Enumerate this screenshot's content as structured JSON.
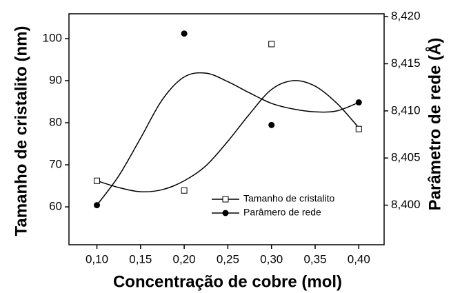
{
  "chart_data": {
    "type": "scatter",
    "xlabel": "Concentração de cobre (mol)",
    "ylabel": "Tamanho de cristalito (nm)",
    "y2label": "Parâmetro de rede (Å)",
    "x": [
      0.1,
      0.2,
      0.3,
      0.4
    ],
    "xlim": [
      0.068,
      0.429
    ],
    "xticks": [
      {
        "value": 0.1,
        "label": "0,10"
      },
      {
        "value": 0.15,
        "label": "0,15"
      },
      {
        "value": 0.2,
        "label": "0,20"
      },
      {
        "value": 0.25,
        "label": "0,25"
      },
      {
        "value": 0.3,
        "label": "0,30"
      },
      {
        "value": 0.35,
        "label": "0,35"
      },
      {
        "value": 0.4,
        "label": "0,40"
      }
    ],
    "ylim": [
      51.0,
      105.9
    ],
    "yticks": [
      60,
      70,
      80,
      90,
      100
    ],
    "y2lim": [
      8.3958,
      8.4203
    ],
    "y2ticks": [
      {
        "value": 8.4,
        "label": "8,400"
      },
      {
        "value": 8.405,
        "label": "8,405"
      },
      {
        "value": 8.41,
        "label": "8,410"
      },
      {
        "value": 8.415,
        "label": "8,415"
      },
      {
        "value": 8.42,
        "label": "8,420"
      }
    ],
    "legend": "lower right",
    "series": [
      {
        "name": "Tamanho de cristalito",
        "color": "#000000",
        "marker": "square-open",
        "axis": "y",
        "values": [
          66.2,
          63.9,
          98.7,
          78.5
        ],
        "line_x": [
          0.1,
          0.125,
          0.15,
          0.175,
          0.2,
          0.225,
          0.25,
          0.275,
          0.3,
          0.325,
          0.35,
          0.375,
          0.4
        ],
        "line_values": [
          66.2,
          64.6,
          63.6,
          64.1,
          66.2,
          69.8,
          75.6,
          82.1,
          87.9,
          90.0,
          88.7,
          84.6,
          78.8
        ]
      },
      {
        "name": "Parâmero de rede",
        "color": "#000000",
        "marker": "circle",
        "axis": "y2",
        "values": [
          8.4,
          8.4182,
          8.4085,
          8.4109
        ],
        "line_x": [
          0.1,
          0.125,
          0.15,
          0.175,
          0.2,
          0.225,
          0.25,
          0.275,
          0.3,
          0.325,
          0.35,
          0.375,
          0.4
        ],
        "line_values": [
          8.4,
          8.4031,
          8.4071,
          8.4112,
          8.4136,
          8.414,
          8.4131,
          8.4119,
          8.4108,
          8.4102,
          8.4099,
          8.41,
          8.4109
        ]
      }
    ]
  }
}
